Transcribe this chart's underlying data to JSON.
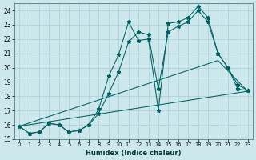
{
  "xlabel": "Humidex (Indice chaleur)",
  "background_color": "#cce8ec",
  "grid_color": "#aacdd4",
  "line_color": "#006060",
  "xlim": [
    -0.5,
    23.5
  ],
  "ylim": [
    15,
    24.5
  ],
  "xtick_labels": [
    "0",
    "1",
    "2",
    "3",
    "4",
    "5",
    "6",
    "7",
    "8",
    "9",
    "10",
    "11",
    "12",
    "13",
    "14",
    "15",
    "16",
    "17",
    "18",
    "19",
    "20",
    "21",
    "22",
    "23"
  ],
  "ytick_labels": [
    "15",
    "16",
    "17",
    "18",
    "19",
    "20",
    "21",
    "22",
    "23",
    "24"
  ],
  "line1_x": [
    0,
    1,
    2,
    3,
    4,
    5,
    6,
    7,
    8,
    9,
    10,
    11,
    12,
    13,
    14,
    15,
    16,
    17,
    18,
    19,
    20,
    21,
    22,
    23
  ],
  "line1_y": [
    15.9,
    15.4,
    15.5,
    16.1,
    16.0,
    15.5,
    15.6,
    16.0,
    17.1,
    19.4,
    20.9,
    23.2,
    21.9,
    22.0,
    17.0,
    23.1,
    23.2,
    23.5,
    24.3,
    23.5,
    21.0,
    20.0,
    18.8,
    18.4
  ],
  "line2_x": [
    0,
    1,
    2,
    3,
    4,
    5,
    6,
    7,
    8,
    9,
    10,
    11,
    12,
    13,
    14,
    15,
    16,
    17,
    18,
    19,
    20,
    21,
    22,
    23
  ],
  "line2_y": [
    15.9,
    15.4,
    15.5,
    16.1,
    16.0,
    15.5,
    15.6,
    16.0,
    16.8,
    18.2,
    19.7,
    21.8,
    22.5,
    22.3,
    18.5,
    22.5,
    22.9,
    23.2,
    24.0,
    23.2,
    21.0,
    20.0,
    18.5,
    18.4
  ],
  "line3_x": [
    0,
    23
  ],
  "line3_y": [
    15.9,
    18.35
  ],
  "line4_x": [
    0,
    20,
    23
  ],
  "line4_y": [
    15.9,
    20.5,
    18.35
  ]
}
